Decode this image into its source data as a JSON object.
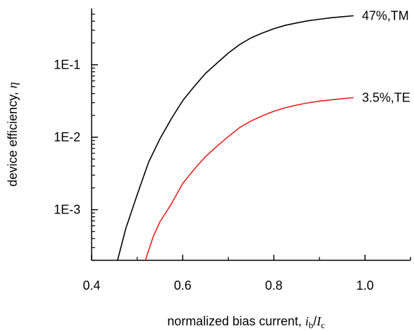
{
  "chart_data": {
    "type": "line",
    "xlabel": {
      "prefix": "normalized bias current, ",
      "sym1": "i",
      "sub1": "b",
      "sep": "/",
      "sym2": "I",
      "sub2": "c"
    },
    "ylabel": {
      "prefix": "device efficiency, ",
      "sym": "η"
    },
    "xlim": [
      0.4,
      1.1
    ],
    "ylim": [
      0.0002,
      0.6
    ],
    "yscale": "log",
    "xticks": [
      {
        "value": 0.4,
        "label": "0.4"
      },
      {
        "value": 0.6,
        "label": "0.6"
      },
      {
        "value": 0.8,
        "label": "0.8"
      },
      {
        "value": 1.0,
        "label": "1.0"
      }
    ],
    "yticks": [
      {
        "value": 0.001,
        "label": "1E-3"
      },
      {
        "value": 0.01,
        "label": "1E-2"
      },
      {
        "value": 0.1,
        "label": "1E-1"
      }
    ],
    "grid": false,
    "legend": "none",
    "series": [
      {
        "name": "47%,TM",
        "color": "#000000",
        "x": [
          0.457,
          0.475,
          0.5,
          0.525,
          0.55,
          0.575,
          0.6,
          0.625,
          0.65,
          0.675,
          0.7,
          0.725,
          0.75,
          0.775,
          0.8,
          0.825,
          0.85,
          0.875,
          0.9,
          0.925,
          0.95,
          0.975
        ],
        "y": [
          0.0002,
          0.00055,
          0.0016,
          0.0045,
          0.0095,
          0.018,
          0.032,
          0.05,
          0.076,
          0.105,
          0.145,
          0.19,
          0.235,
          0.275,
          0.315,
          0.35,
          0.378,
          0.405,
          0.425,
          0.445,
          0.46,
          0.475
        ]
      },
      {
        "name": "3.5%,TE",
        "color": "#e8201c",
        "x": [
          0.518,
          0.535,
          0.55,
          0.575,
          0.6,
          0.625,
          0.65,
          0.675,
          0.7,
          0.725,
          0.75,
          0.775,
          0.8,
          0.825,
          0.85,
          0.875,
          0.9,
          0.925,
          0.95,
          0.975
        ],
        "y": [
          0.0002,
          0.00042,
          0.00068,
          0.0012,
          0.0023,
          0.0036,
          0.0054,
          0.0075,
          0.0102,
          0.0136,
          0.0168,
          0.0198,
          0.0228,
          0.0255,
          0.0278,
          0.0298,
          0.0314,
          0.0328,
          0.034,
          0.0352
        ]
      }
    ]
  }
}
